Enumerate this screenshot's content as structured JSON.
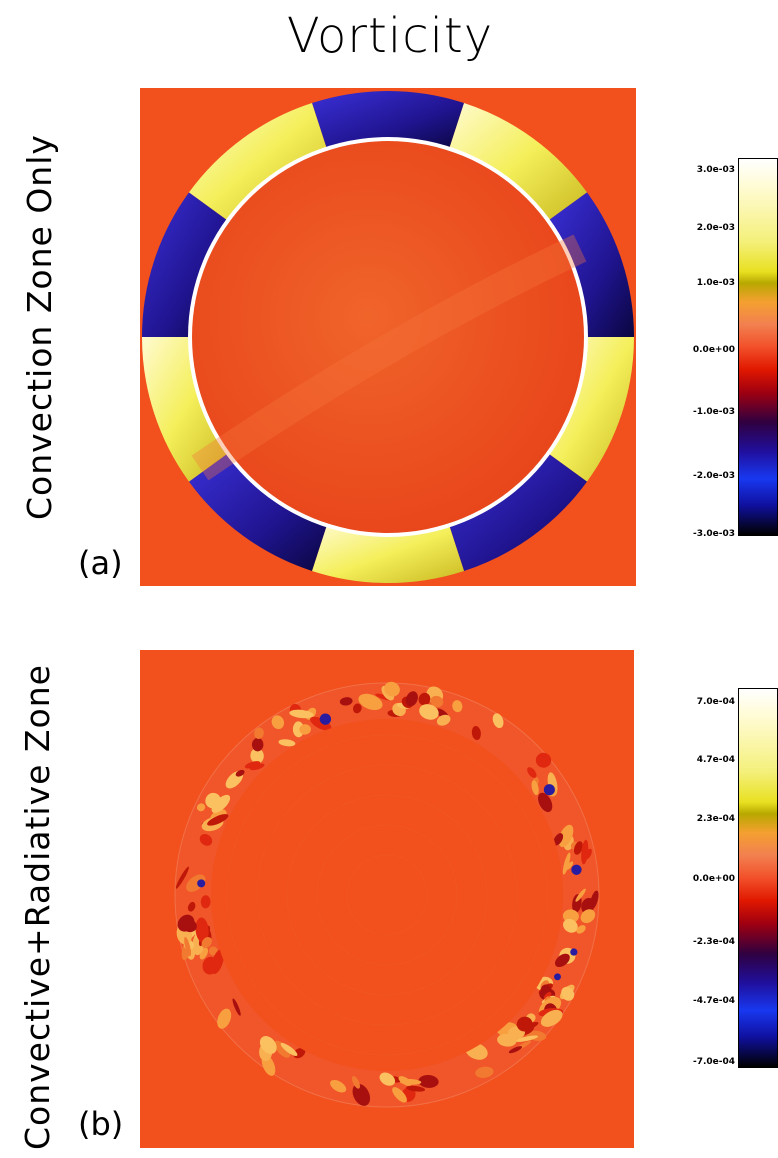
{
  "figure": {
    "title": "Vorticity",
    "panels": [
      {
        "letter": "(a)",
        "side_label": "Convection  Zone Only",
        "colorbar_ticks": [
          "3.0e-03",
          "2.0e-03",
          "1.0e-03",
          "0.0e+00",
          "-1.0e-03",
          "-2.0e-03",
          "-3.0e-03"
        ]
      },
      {
        "letter": "(b)",
        "side_label": "Convective+Radiative  Zone",
        "colorbar_ticks": [
          "7.0e-04",
          "4.7e-04",
          "2.3e-04",
          "0.0e+00",
          "-2.3e-04",
          "-4.7e-04",
          "-7.0e-04"
        ]
      }
    ]
  },
  "colors": {
    "background_field": "#f2501c",
    "positive": "#f0ec60",
    "negative": "#2a1ca0"
  }
}
